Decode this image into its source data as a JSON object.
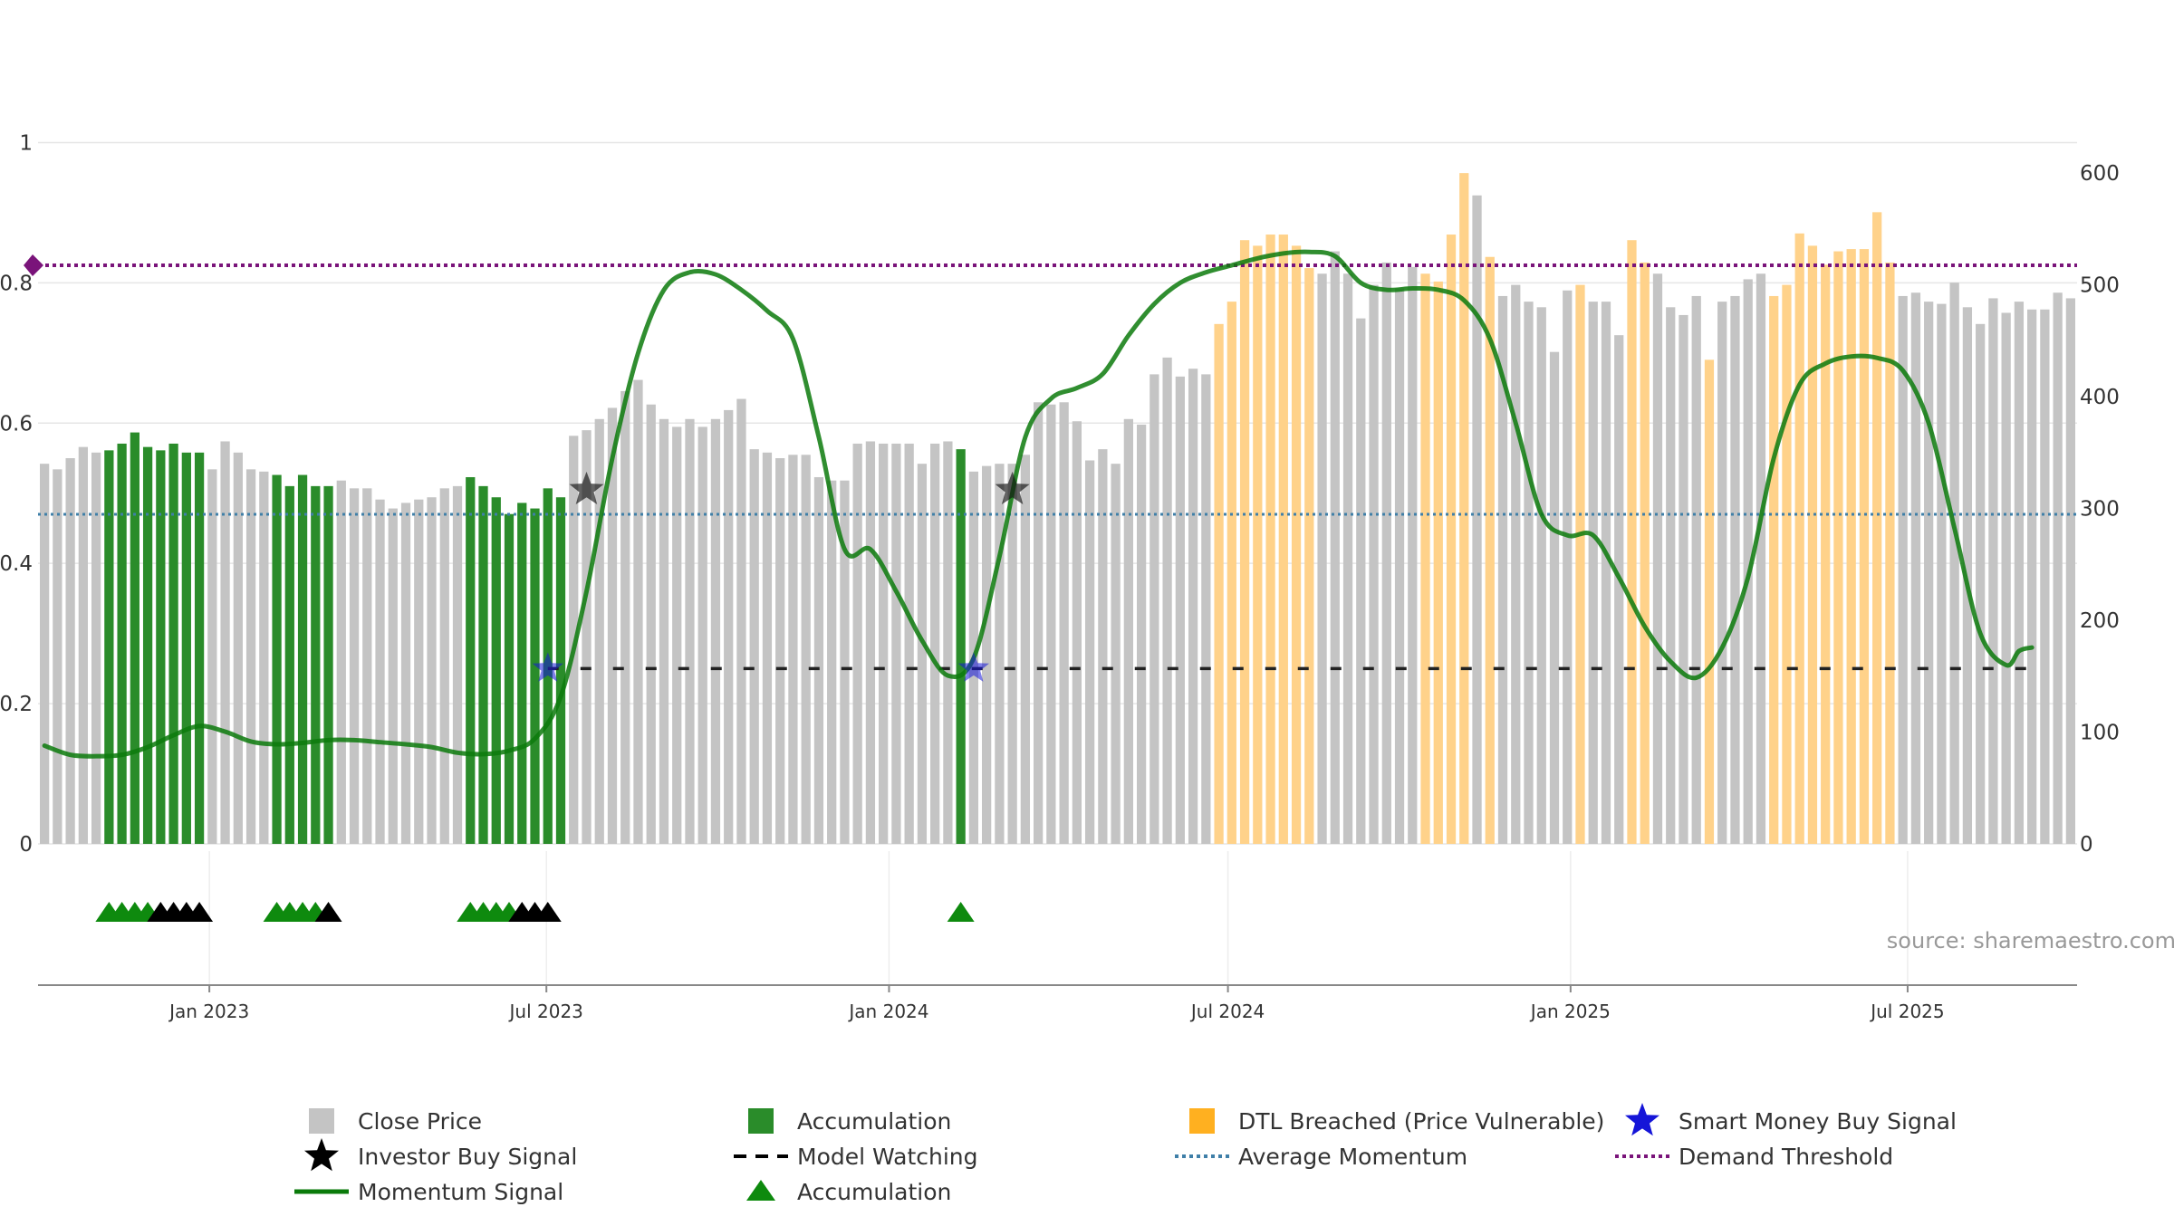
{
  "watermark": "source: sharemaestro.com",
  "colors": {
    "price": "#c4c4c4",
    "accumulation": "#2a8c2a",
    "dtl": "#ffd28a",
    "momentum": "#0c7a0c",
    "momentum_inside": "#4d9b4d",
    "watching": "#222222",
    "average": "#3f7fa8",
    "demand": "#7a147a",
    "smart_money": "#1515d8",
    "investor": "#111111",
    "acc_marker": "#0e8a0e",
    "grid": "#e6e6e6",
    "axis_text": "#333333"
  },
  "legend": [
    {
      "label": "Close Price",
      "icon": "gray-square-icon"
    },
    {
      "label": "Accumulation",
      "icon": "green-square-icon"
    },
    {
      "label": "DTL Breached (Price Vulnerable)",
      "icon": "orange-square-icon"
    },
    {
      "label": "Smart Money Buy Signal",
      "icon": "blue-star-icon"
    },
    {
      "label": "Investor Buy Signal",
      "icon": "black-star-icon"
    },
    {
      "label": "Model Watching",
      "icon": "dashed-line-icon"
    },
    {
      "label": "Average Momentum",
      "icon": "dotted-blue-line-icon"
    },
    {
      "label": "Demand Threshold",
      "icon": "dotted-purple-line-icon"
    },
    {
      "label": "Momentum Signal",
      "icon": "green-line-icon"
    },
    {
      "label": "Accumulation",
      "icon": "green-triangle-icon"
    }
  ],
  "chart_data": {
    "type": "bar",
    "title": "",
    "x_range": [
      "2022-10-01",
      "2025-09-30"
    ],
    "x_ticks": [
      {
        "date": "2023-01-01",
        "label": "Jan 2023"
      },
      {
        "date": "2023-07-01",
        "label": "Jul 2023"
      },
      {
        "date": "2024-01-01",
        "label": "Jan 2024"
      },
      {
        "date": "2024-07-01",
        "label": "Jul 2024"
      },
      {
        "date": "2025-01-01",
        "label": "Jan 2025"
      },
      {
        "date": "2025-07-01",
        "label": "Jul 2025"
      }
    ],
    "y_left": {
      "range": [
        0,
        1.1
      ],
      "ticks": [
        0,
        0.2,
        0.4,
        0.6,
        0.8,
        1
      ],
      "labels": [
        "0",
        "0.2",
        "0.4",
        "0.6",
        "0.8",
        "1"
      ]
    },
    "y_right": {
      "range": [
        0,
        690
      ],
      "ticks": [
        0,
        100,
        200,
        300,
        400,
        500,
        600
      ],
      "labels": [
        "0",
        "100",
        "200",
        "300",
        "400",
        "500",
        "600"
      ]
    },
    "close_price": [
      340,
      335,
      345,
      355,
      350,
      352,
      358,
      368,
      355,
      352,
      358,
      350,
      350,
      335,
      360,
      350,
      335,
      333,
      330,
      320,
      330,
      320,
      320,
      325,
      318,
      318,
      308,
      300,
      305,
      308,
      310,
      318,
      320,
      328,
      320,
      310,
      295,
      305,
      300,
      318,
      310,
      365,
      370,
      380,
      390,
      405,
      415,
      393,
      380,
      373,
      380,
      373,
      380,
      388,
      398,
      353,
      350,
      345,
      348,
      348,
      328,
      325,
      325,
      358,
      360,
      358,
      358,
      358,
      340,
      358,
      360,
      353,
      333,
      338,
      340,
      340,
      348,
      395,
      393,
      395,
      378,
      343,
      353,
      340,
      380,
      375,
      420,
      435,
      418,
      425,
      420,
      465,
      485,
      540,
      535,
      545,
      545,
      535,
      515,
      510,
      530,
      510,
      470,
      500,
      520,
      497,
      516,
      510,
      503,
      545,
      600,
      580,
      525,
      490,
      500,
      485,
      480,
      440,
      495,
      500,
      485,
      485,
      455,
      540,
      520,
      510,
      480,
      473,
      490,
      433,
      485,
      490,
      505,
      510,
      490,
      500,
      546,
      535,
      518,
      530,
      532,
      532,
      565,
      520,
      490,
      493,
      485,
      483,
      502,
      480,
      465,
      488,
      475,
      485,
      478,
      478,
      493,
      488
    ],
    "accumulation_bars": [
      {
        "from": 5,
        "to": 12
      },
      {
        "from": 18,
        "to": 22
      },
      {
        "from": 33,
        "to": 40
      },
      {
        "from": 71,
        "to": 71
      }
    ],
    "dtl_bars": [
      {
        "from": 91,
        "to": 98
      },
      {
        "from": 107,
        "to": 110
      },
      {
        "from": 112,
        "to": 112
      },
      {
        "from": 119,
        "to": 119
      },
      {
        "from": 123,
        "to": 123
      },
      {
        "from": 124,
        "to": 124
      },
      {
        "from": 129,
        "to": 129
      },
      {
        "from": 134,
        "to": 143
      }
    ],
    "momentum_signal": [
      [
        0,
        0.14
      ],
      [
        2,
        0.127
      ],
      [
        4,
        0.125
      ],
      [
        6,
        0.127
      ],
      [
        8,
        0.138
      ],
      [
        10,
        0.155
      ],
      [
        12,
        0.168
      ],
      [
        14,
        0.16
      ],
      [
        16,
        0.146
      ],
      [
        18,
        0.142
      ],
      [
        20,
        0.144
      ],
      [
        22,
        0.148
      ],
      [
        24,
        0.148
      ],
      [
        26,
        0.145
      ],
      [
        28,
        0.142
      ],
      [
        30,
        0.138
      ],
      [
        32,
        0.13
      ],
      [
        34,
        0.128
      ],
      [
        36,
        0.133
      ],
      [
        38,
        0.15
      ],
      [
        40,
        0.21
      ],
      [
        42,
        0.36
      ],
      [
        44,
        0.55
      ],
      [
        46,
        0.7
      ],
      [
        48,
        0.79
      ],
      [
        50,
        0.815
      ],
      [
        52,
        0.812
      ],
      [
        54,
        0.79
      ],
      [
        56,
        0.76
      ],
      [
        58,
        0.72
      ],
      [
        60,
        0.58
      ],
      [
        62,
        0.42
      ],
      [
        64,
        0.42
      ],
      [
        66,
        0.36
      ],
      [
        68,
        0.29
      ],
      [
        70,
        0.24
      ],
      [
        72,
        0.265
      ],
      [
        74,
        0.41
      ],
      [
        76,
        0.58
      ],
      [
        78,
        0.635
      ],
      [
        80,
        0.65
      ],
      [
        82,
        0.67
      ],
      [
        84,
        0.725
      ],
      [
        86,
        0.77
      ],
      [
        88,
        0.8
      ],
      [
        90,
        0.815
      ],
      [
        92,
        0.825
      ],
      [
        94,
        0.835
      ],
      [
        96,
        0.842
      ],
      [
        98,
        0.844
      ],
      [
        100,
        0.838
      ],
      [
        102,
        0.8
      ],
      [
        104,
        0.79
      ],
      [
        106,
        0.792
      ],
      [
        108,
        0.79
      ],
      [
        110,
        0.775
      ],
      [
        112,
        0.72
      ],
      [
        114,
        0.6
      ],
      [
        116,
        0.47
      ],
      [
        118,
        0.44
      ],
      [
        120,
        0.44
      ],
      [
        122,
        0.38
      ],
      [
        124,
        0.31
      ],
      [
        126,
        0.26
      ],
      [
        128,
        0.237
      ],
      [
        130,
        0.28
      ],
      [
        132,
        0.38
      ],
      [
        134,
        0.55
      ],
      [
        136,
        0.655
      ],
      [
        138,
        0.685
      ],
      [
        140,
        0.695
      ],
      [
        142,
        0.693
      ],
      [
        144,
        0.675
      ],
      [
        146,
        0.6
      ],
      [
        148,
        0.45
      ],
      [
        150,
        0.3
      ],
      [
        152,
        0.255
      ],
      [
        153,
        0.275
      ],
      [
        154,
        0.28
      ]
    ],
    "model_watching": {
      "from": 39,
      "to": 154,
      "value": 0.25
    },
    "average_momentum": 0.47,
    "demand_threshold": 0.825,
    "smart_money_buy_signals": [
      {
        "index": 39,
        "value": 0.25
      },
      {
        "index": 72,
        "value": 0.25
      }
    ],
    "investor_buy_signals": [
      {
        "index": 42,
        "value": 0.505
      },
      {
        "index": 75,
        "value": 0.505
      }
    ],
    "accumulation_markers": [
      {
        "index": 5,
        "color": "green"
      },
      {
        "index": 6,
        "color": "green"
      },
      {
        "index": 7,
        "color": "green"
      },
      {
        "index": 8,
        "color": "green"
      },
      {
        "index": 9,
        "color": "black"
      },
      {
        "index": 10,
        "color": "black"
      },
      {
        "index": 11,
        "color": "black"
      },
      {
        "index": 12,
        "color": "black"
      },
      {
        "index": 18,
        "color": "green"
      },
      {
        "index": 19,
        "color": "green"
      },
      {
        "index": 20,
        "color": "green"
      },
      {
        "index": 21,
        "color": "green"
      },
      {
        "index": 22,
        "color": "black"
      },
      {
        "index": 33,
        "color": "green"
      },
      {
        "index": 34,
        "color": "green"
      },
      {
        "index": 35,
        "color": "green"
      },
      {
        "index": 36,
        "color": "green"
      },
      {
        "index": 37,
        "color": "black"
      },
      {
        "index": 38,
        "color": "black"
      },
      {
        "index": 39,
        "color": "black"
      },
      {
        "index": 71,
        "color": "green"
      }
    ]
  }
}
